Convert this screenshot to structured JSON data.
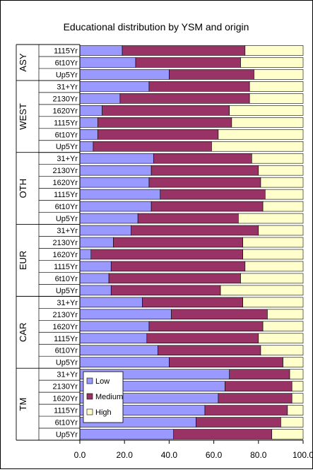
{
  "chart_data": {
    "type": "bar",
    "orientation": "horizontal",
    "stacked": true,
    "title": "Educational distribution by YSM and origin",
    "xlim": [
      0,
      100
    ],
    "x_ticks": [
      "0.0",
      "20.0",
      "40.0",
      "60.0",
      "80.0",
      "100.0"
    ],
    "legend_placement": "inside-lower-left",
    "colors": {
      "Low": "#9999FF",
      "Medium": "#993366",
      "High": "#FFFFCC"
    },
    "groups": [
      {
        "name": "ASY",
        "categories": [
          "1115Yr",
          "6t10Yr",
          "Up5Yr"
        ]
      },
      {
        "name": "WEST",
        "categories": [
          "31+Yr",
          "2130Yr",
          "1620Yr",
          "1115Yr",
          "6t10Yr",
          "Up5Yr"
        ]
      },
      {
        "name": "OTH",
        "categories": [
          "31+Yr",
          "2130Yr",
          "1620Yr",
          "1115Yr",
          "6t10Yr",
          "Up5Yr"
        ]
      },
      {
        "name": "EUR",
        "categories": [
          "31+Yr",
          "2130Yr",
          "1620Yr",
          "1115Yr",
          "6t10Yr",
          "Up5Yr"
        ]
      },
      {
        "name": "CAR",
        "categories": [
          "31+Yr",
          "2130Yr",
          "1620Yr",
          "1115Yr",
          "6t10Yr",
          "Up5Yr"
        ]
      },
      {
        "name": "TM",
        "categories": [
          "31+Yr",
          "2130Yr",
          "1620Yr",
          "1115Yr",
          "6t10Yr",
          "Up5Yr"
        ]
      }
    ],
    "series": [
      {
        "name": "Low",
        "values": [
          19,
          25,
          40,
          31,
          18,
          10,
          8,
          8,
          6,
          33,
          32,
          31,
          36,
          32,
          26,
          23,
          15,
          5,
          14,
          13,
          14,
          28,
          41,
          31,
          30,
          35,
          40,
          67,
          65,
          62,
          56,
          52,
          42
        ]
      },
      {
        "name": "Medium",
        "values": [
          55,
          47,
          38,
          45,
          58,
          57,
          60,
          54,
          53,
          44,
          48,
          50,
          47,
          50,
          45,
          57,
          58,
          68,
          60,
          59,
          49,
          45,
          43,
          51,
          50,
          46,
          51,
          27,
          30,
          33,
          37,
          38,
          44
        ]
      },
      {
        "name": "High",
        "values": [
          26,
          28,
          22,
          24,
          24,
          33,
          32,
          38,
          41,
          23,
          20,
          19,
          17,
          18,
          29,
          20,
          27,
          27,
          26,
          28,
          37,
          27,
          16,
          18,
          20,
          19,
          9,
          6,
          5,
          5,
          7,
          10,
          14
        ]
      }
    ]
  }
}
